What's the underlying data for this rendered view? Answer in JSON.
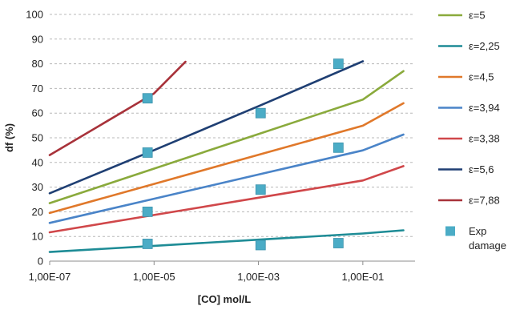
{
  "chart_data": {
    "type": "line",
    "title": "",
    "xlabel": "[CO] mol/L",
    "ylabel": "df (%)",
    "x_scale": "log",
    "xlim": [
      1e-07,
      1
    ],
    "ylim": [
      0,
      100
    ],
    "y_ticks": [
      0,
      10,
      20,
      30,
      40,
      50,
      60,
      70,
      80,
      90,
      100
    ],
    "x_ticks": [
      {
        "value": 1e-07,
        "label": "1,00E-07"
      },
      {
        "value": 1e-05,
        "label": "1,00E-05"
      },
      {
        "value": 0.001,
        "label": "1,00E-03"
      },
      {
        "value": 0.1,
        "label": "1,00E-01"
      }
    ],
    "grid": "horizontal dashed",
    "legend_position": "right",
    "series": [
      {
        "name": "ε=5",
        "color": "#8aaa3c",
        "points": [
          [
            1e-07,
            23.5
          ],
          [
            1e-06,
            30.5
          ],
          [
            1e-05,
            37.5
          ],
          [
            0.0001,
            44.5
          ],
          [
            0.001,
            51.5
          ],
          [
            0.01,
            58.5
          ],
          [
            0.1,
            65.5
          ],
          [
            0.6,
            77
          ]
        ]
      },
      {
        "name": "ε=2,25",
        "color": "#1e8c96",
        "points": [
          [
            1e-07,
            3.7
          ],
          [
            1e-05,
            6.2
          ],
          [
            0.001,
            8.7
          ],
          [
            0.1,
            11.2
          ],
          [
            0.6,
            12.5
          ]
        ]
      },
      {
        "name": "ε=4,5",
        "color": "#e0782a",
        "points": [
          [
            1e-07,
            19.5
          ],
          [
            1e-05,
            31.3
          ],
          [
            0.001,
            43.1
          ],
          [
            0.1,
            54.9
          ],
          [
            0.6,
            64
          ]
        ]
      },
      {
        "name": "ε=3,94",
        "color": "#4a84c8",
        "points": [
          [
            1e-07,
            15.5
          ],
          [
            1e-05,
            25.3
          ],
          [
            0.001,
            35.1
          ],
          [
            0.1,
            44.9
          ],
          [
            0.6,
            51.3
          ]
        ]
      },
      {
        "name": "ε=3,38",
        "color": "#d0474a",
        "points": [
          [
            1e-07,
            11.7
          ],
          [
            1e-05,
            18.7
          ],
          [
            0.001,
            25.7
          ],
          [
            0.1,
            32.7
          ],
          [
            0.6,
            38.5
          ]
        ]
      },
      {
        "name": "ε=5,6",
        "color": "#1f3f73",
        "points": [
          [
            1e-07,
            27.5
          ],
          [
            1e-05,
            45
          ],
          [
            0.001,
            62.8
          ],
          [
            0.1,
            81
          ]
        ]
      },
      {
        "name": "ε=7,88",
        "color": "#a8323a",
        "points": [
          [
            1e-07,
            43
          ],
          [
            1e-05,
            68
          ],
          [
            4e-05,
            80.8
          ]
        ]
      }
    ],
    "scatter": {
      "name": "Exp damage",
      "legend_lines": [
        "Exp",
        "damage"
      ],
      "color": "#4bacc6",
      "points": [
        [
          7.5e-06,
          7
        ],
        [
          7.5e-06,
          20
        ],
        [
          7.5e-06,
          44
        ],
        [
          7.5e-06,
          66
        ],
        [
          0.0011,
          6.5
        ],
        [
          0.0011,
          29
        ],
        [
          0.0011,
          60
        ],
        [
          0.034,
          7.3
        ],
        [
          0.034,
          46
        ],
        [
          0.034,
          80
        ]
      ]
    }
  }
}
